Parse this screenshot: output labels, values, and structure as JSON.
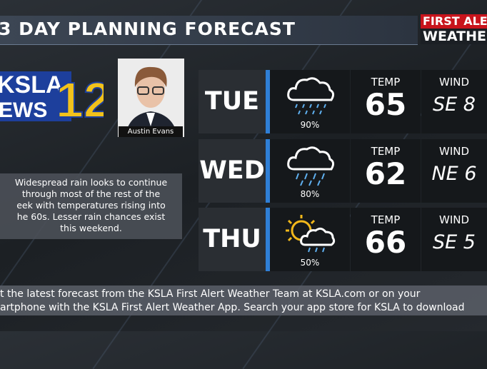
{
  "header": {
    "title": "3 DAY PLANNING FORECAST",
    "brand_top": "FIRST ALE",
    "brand_bottom": "WEATHE"
  },
  "logo": {
    "station": "KSLA",
    "channel": "12",
    "news": "EWS"
  },
  "presenter": {
    "name": "Austin Evans"
  },
  "summary": {
    "lines": [
      "Widespread rain looks to continue",
      "through most of the rest of the",
      "eek with temperatures rising into",
      "he 60s. Lesser rain chances exist",
      "this weekend."
    ]
  },
  "forecast": [
    {
      "day": "TUE",
      "precip": "90%",
      "temp_label": "TEMP",
      "temp": 65,
      "wind_label": "WIND",
      "wind": "SE 8"
    },
    {
      "day": "WED",
      "precip": "80%",
      "temp_label": "TEMP",
      "temp": 62,
      "wind_label": "WIND",
      "wind": "NE 6"
    },
    {
      "day": "THU",
      "precip": "50%",
      "temp_label": "TEMP",
      "temp": 66,
      "wind_label": "WIND",
      "wind": "SE 5"
    }
  ],
  "ticker": {
    "lines": [
      "t the latest forecast from the KSLA First Alert Weather Team at KSLA.com or on your",
      "artphone with the KSLA First Alert Weather App. Search your app store for KSLA to download"
    ]
  }
}
